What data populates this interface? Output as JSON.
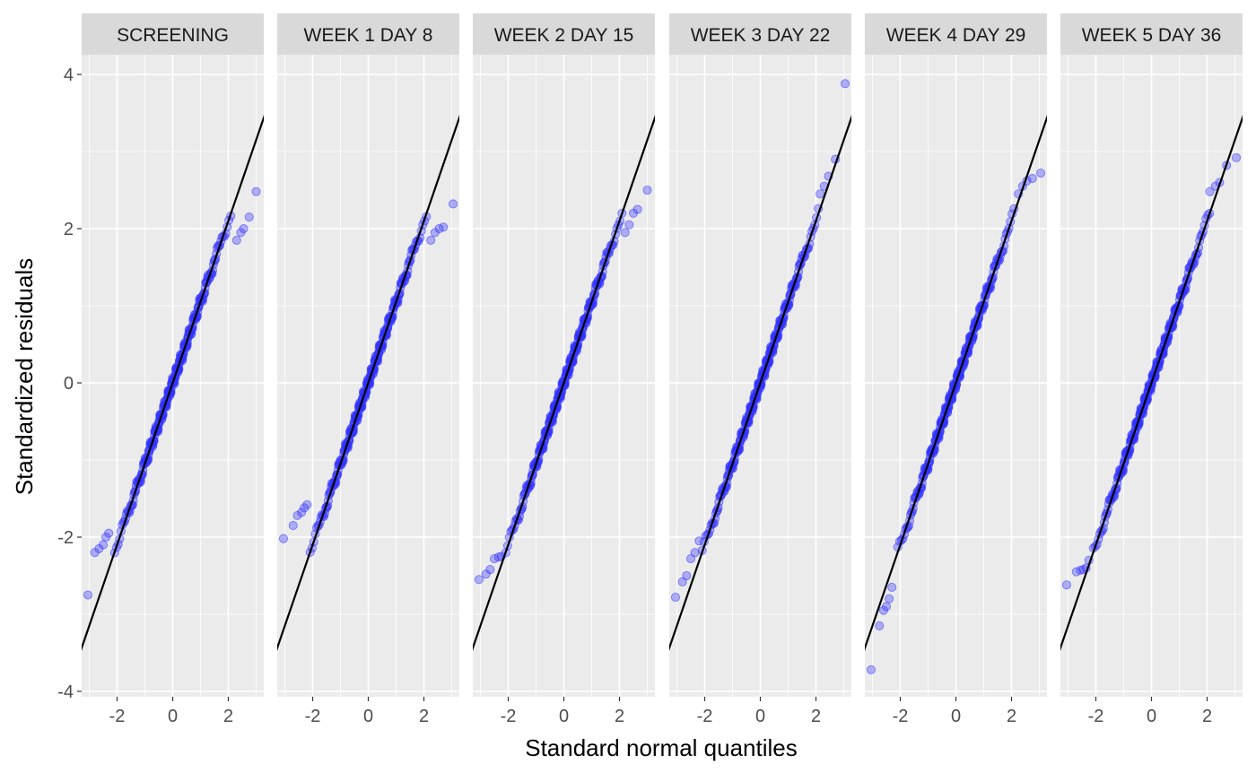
{
  "chart_data": {
    "type": "scatter",
    "subtype": "qq-plot-faceted",
    "xlabel": "Standard normal quantiles",
    "ylabel": "Standardized residuals",
    "xlim": [
      -3.15,
      3.15
    ],
    "ylim": [
      -4.1,
      4.1
    ],
    "x_ticks": [
      -2,
      0,
      2
    ],
    "x_tick_labels": [
      "-2",
      "0",
      "2"
    ],
    "y_ticks": [
      -4,
      -2,
      0,
      2,
      4
    ],
    "y_tick_labels": [
      "-4",
      "-2",
      "0",
      "2",
      "4"
    ],
    "grid": true,
    "point_color": "#3333ff",
    "point_opacity": 0.35,
    "line_color": "#000000",
    "panel_background": "#ebebeb",
    "strip_background": "#d9d9d9",
    "n_points_per_panel": 300,
    "panels": [
      {
        "label": "SCREENING",
        "line": {
          "intercept": 0.0,
          "slope": 1.05
        },
        "tail_points": [
          [
            -3.05,
            -2.75
          ],
          [
            -2.8,
            -2.2
          ],
          [
            -2.65,
            -2.15
          ],
          [
            -2.5,
            -2.1
          ],
          [
            -2.4,
            -2.0
          ],
          [
            -2.3,
            -1.95
          ],
          [
            2.3,
            1.85
          ],
          [
            2.45,
            1.95
          ],
          [
            2.55,
            2.0
          ],
          [
            2.75,
            2.15
          ],
          [
            3.0,
            2.48
          ]
        ]
      },
      {
        "label": "WEEK 1 DAY 8",
        "line": {
          "intercept": 0.0,
          "slope": 1.05
        },
        "tail_points": [
          [
            -3.05,
            -2.02
          ],
          [
            -2.7,
            -1.85
          ],
          [
            -2.55,
            -1.72
          ],
          [
            -2.4,
            -1.68
          ],
          [
            -2.3,
            -1.62
          ],
          [
            -2.2,
            -1.58
          ],
          [
            2.25,
            1.85
          ],
          [
            2.4,
            1.95
          ],
          [
            2.55,
            2.0
          ],
          [
            2.7,
            2.02
          ],
          [
            3.05,
            2.32
          ]
        ]
      },
      {
        "label": "WEEK 2 DAY 15",
        "line": {
          "intercept": 0.0,
          "slope": 1.05
        },
        "tail_points": [
          [
            -3.05,
            -2.55
          ],
          [
            -2.8,
            -2.48
          ],
          [
            -2.65,
            -2.42
          ],
          [
            -2.5,
            -2.28
          ],
          [
            -2.35,
            -2.26
          ],
          [
            -2.25,
            -2.25
          ],
          [
            2.2,
            1.95
          ],
          [
            2.35,
            2.05
          ],
          [
            2.5,
            2.2
          ],
          [
            2.65,
            2.25
          ],
          [
            3.0,
            2.5
          ]
        ]
      },
      {
        "label": "WEEK 3 DAY 22",
        "line": {
          "intercept": 0.0,
          "slope": 1.05
        },
        "tail_points": [
          [
            -3.05,
            -2.78
          ],
          [
            -2.8,
            -2.58
          ],
          [
            -2.65,
            -2.5
          ],
          [
            -2.5,
            -2.28
          ],
          [
            -2.35,
            -2.2
          ],
          [
            -2.2,
            -2.05
          ],
          [
            2.15,
            2.45
          ],
          [
            2.3,
            2.55
          ],
          [
            2.45,
            2.68
          ],
          [
            2.7,
            2.9
          ],
          [
            3.05,
            3.88
          ]
        ]
      },
      {
        "label": "WEEK 4 DAY 29",
        "line": {
          "intercept": 0.0,
          "slope": 1.05
        },
        "tail_points": [
          [
            -3.05,
            -3.72
          ],
          [
            -2.75,
            -3.15
          ],
          [
            -2.6,
            -2.95
          ],
          [
            -2.5,
            -2.9
          ],
          [
            -2.4,
            -2.8
          ],
          [
            -2.3,
            -2.65
          ],
          [
            2.25,
            2.45
          ],
          [
            2.4,
            2.55
          ],
          [
            2.55,
            2.62
          ],
          [
            2.75,
            2.65
          ],
          [
            3.05,
            2.72
          ]
        ]
      },
      {
        "label": "WEEK 5 DAY 36",
        "line": {
          "intercept": 0.0,
          "slope": 1.05
        },
        "tail_points": [
          [
            -3.05,
            -2.62
          ],
          [
            -2.7,
            -2.45
          ],
          [
            -2.55,
            -2.43
          ],
          [
            -2.45,
            -2.42
          ],
          [
            -2.35,
            -2.4
          ],
          [
            -2.25,
            -2.3
          ],
          [
            2.1,
            2.48
          ],
          [
            2.3,
            2.55
          ],
          [
            2.45,
            2.6
          ],
          [
            2.7,
            2.82
          ],
          [
            3.05,
            2.92
          ]
        ]
      }
    ]
  }
}
